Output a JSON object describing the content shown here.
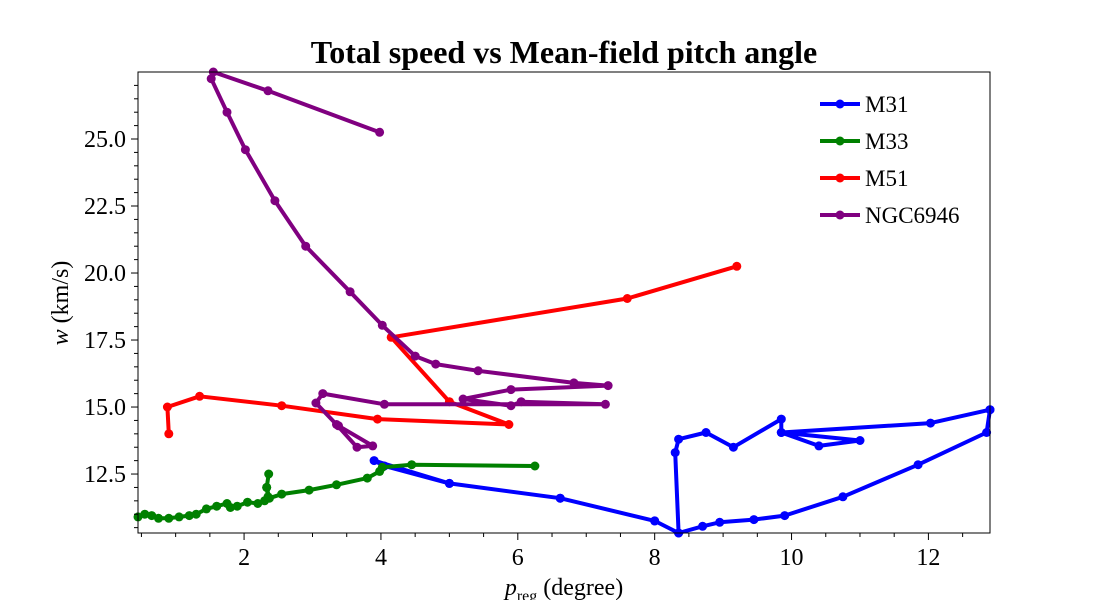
{
  "chart_data": {
    "type": "line",
    "title": "Total speed vs Mean-field pitch angle",
    "xlabel_main": "p",
    "xlabel_sub": "reg",
    "xlabel_rest": " (degree)",
    "ylabel_main": "w",
    "ylabel_rest": " (km/s)",
    "xlim": [
      0.45,
      12.9
    ],
    "ylim": [
      10.3,
      27.5
    ],
    "xticks": [
      2,
      4,
      6,
      8,
      10,
      12
    ],
    "xtick_labels": [
      "2",
      "4",
      "6",
      "8",
      "10",
      "12"
    ],
    "yticks": [
      12.5,
      15.0,
      17.5,
      20.0,
      22.5,
      25.0
    ],
    "ytick_labels": [
      "12.5",
      "15.0",
      "17.5",
      "20.0",
      "22.5",
      "25.0"
    ],
    "grid": false,
    "legend_position": "top-right",
    "series": [
      {
        "name": "M31",
        "color": "#0000ff",
        "x": [
          12.9,
          12.85,
          11.85,
          10.75,
          9.9,
          9.45,
          8.95,
          8.7,
          8.35,
          8.0,
          6.62,
          5.0,
          3.9,
          4.05,
          5.0,
          6.62,
          8.0,
          8.35,
          8.3,
          8.35,
          8.75,
          9.15,
          9.85,
          9.85,
          10.4,
          11.0,
          9.85,
          12.03,
          12.9
        ],
        "y": [
          14.9,
          14.05,
          12.85,
          11.65,
          10.95,
          10.8,
          10.7,
          10.55,
          10.3,
          10.75,
          11.6,
          12.15,
          13.0,
          12.8,
          12.15,
          11.6,
          10.75,
          10.3,
          13.3,
          13.8,
          14.05,
          13.5,
          14.55,
          14.05,
          13.55,
          13.75,
          14.05,
          14.4,
          14.9
        ]
      },
      {
        "name": "M33",
        "color": "#008000",
        "x": [
          0.45,
          0.55,
          0.65,
          0.75,
          0.9,
          1.05,
          1.2,
          1.3,
          1.45,
          1.6,
          1.75,
          1.8,
          1.9,
          2.05,
          2.2,
          2.3,
          2.35,
          2.33,
          2.36,
          2.33,
          2.37,
          2.55,
          2.95,
          3.35,
          3.8,
          3.98,
          4.02,
          4.45,
          6.25
        ],
        "y": [
          10.9,
          11.0,
          10.95,
          10.85,
          10.85,
          10.9,
          10.95,
          11.0,
          11.2,
          11.3,
          11.4,
          11.25,
          11.3,
          11.45,
          11.4,
          11.5,
          11.65,
          12.0,
          12.5,
          12.0,
          11.6,
          11.75,
          11.9,
          12.1,
          12.35,
          12.6,
          12.75,
          12.85,
          12.8
        ]
      },
      {
        "name": "M51",
        "color": "#ff0000",
        "x": [
          0.9,
          0.88,
          1.35,
          2.55,
          3.95,
          5.87,
          5.0,
          4.15,
          7.6,
          9.2
        ],
        "y": [
          14.0,
          15.0,
          15.4,
          15.05,
          14.55,
          14.35,
          15.2,
          17.6,
          19.05,
          20.25
        ]
      },
      {
        "name": "NGC6946",
        "color": "#800080",
        "x": [
          3.98,
          2.35,
          1.55,
          1.52,
          1.75,
          2.02,
          2.45,
          2.9,
          3.55,
          4.02,
          4.5,
          4.8,
          5.42,
          6.82,
          7.32,
          5.9,
          5.2,
          5.9,
          6.05,
          7.28,
          4.05,
          3.15,
          3.05,
          3.35,
          3.65,
          3.88,
          3.38
        ],
        "y": [
          25.25,
          26.8,
          27.5,
          27.25,
          26.0,
          24.6,
          22.7,
          21.0,
          19.3,
          18.05,
          16.9,
          16.6,
          16.35,
          15.9,
          15.8,
          15.65,
          15.3,
          15.05,
          15.2,
          15.1,
          15.1,
          15.5,
          15.15,
          14.35,
          13.5,
          13.55,
          14.3
        ]
      }
    ]
  }
}
